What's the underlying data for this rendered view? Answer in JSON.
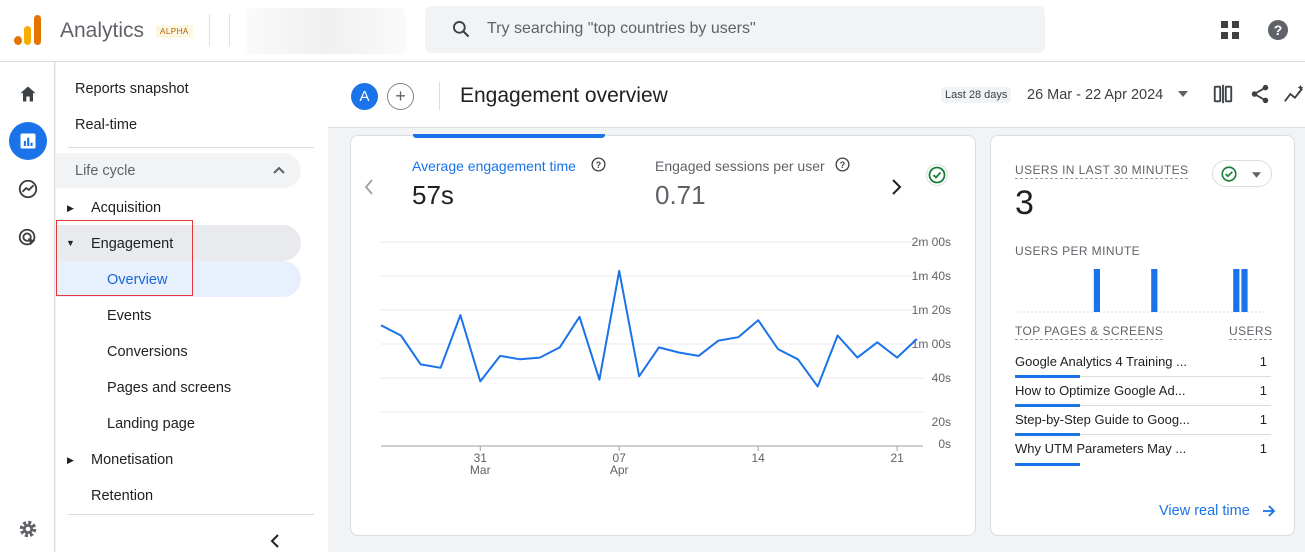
{
  "app": {
    "name": "Analytics",
    "badge": "ALPHA"
  },
  "search": {
    "placeholder": "Try searching \"top countries by users\""
  },
  "sidebar": {
    "reports_snapshot": "Reports snapshot",
    "realtime": "Real-time",
    "section": "Life cycle",
    "acquisition": "Acquisition",
    "engagement": "Engagement",
    "overview": "Overview",
    "events": "Events",
    "conversions": "Conversions",
    "pages_screens": "Pages and screens",
    "landing_page": "Landing page",
    "monetisation": "Monetisation",
    "retention": "Retention"
  },
  "header": {
    "avatar": "A",
    "title": "Engagement overview",
    "date_label": "Last 28 days",
    "date_range": "26 Mar - 22 Apr 2024"
  },
  "metrics": [
    {
      "label": "Average engagement time",
      "value": "57s",
      "color": "#1a73e8"
    },
    {
      "label": "Engaged sessions per user",
      "value": "0.71",
      "color": "#5f6368"
    }
  ],
  "chart_data": {
    "type": "line",
    "y_tick_labels": [
      "2m 00s",
      "1m 40s",
      "1m 20s",
      "1m 00s",
      "40s",
      "20s",
      "0s"
    ],
    "ylim_seconds": [
      0,
      120
    ],
    "x_tick_labels": [
      {
        "day": "31",
        "month": "Mar"
      },
      {
        "day": "07",
        "month": "Apr"
      },
      {
        "day": "14",
        "month": ""
      },
      {
        "day": "21",
        "month": ""
      }
    ],
    "x": [
      "26 Mar",
      "27 Mar",
      "28 Mar",
      "29 Mar",
      "30 Mar",
      "31 Mar",
      "01 Apr",
      "02 Apr",
      "03 Apr",
      "04 Apr",
      "05 Apr",
      "06 Apr",
      "07 Apr",
      "08 Apr",
      "09 Apr",
      "10 Apr",
      "11 Apr",
      "12 Apr",
      "13 Apr",
      "14 Apr",
      "15 Apr",
      "16 Apr",
      "17 Apr",
      "18 Apr",
      "19 Apr",
      "20 Apr",
      "21 Apr",
      "22 Apr"
    ],
    "values": [
      71,
      65,
      48,
      46,
      77,
      38,
      53,
      51,
      52,
      58,
      76,
      39,
      103,
      41,
      58,
      55,
      53,
      62,
      64,
      74,
      57,
      51,
      35,
      65,
      52,
      61,
      52,
      63
    ],
    "color": "#1a73e8"
  },
  "realtime": {
    "users_label": "USERS IN LAST 30 MINUTES",
    "users_value": "3",
    "per_minute_label": "USERS PER MINUTE",
    "per_minute": [
      0,
      0,
      0,
      0,
      0,
      0,
      0,
      0,
      0,
      1,
      0,
      0,
      0,
      0,
      0,
      0,
      1,
      0,
      0,
      0,
      0,
      0,
      0,
      0,
      0,
      0,
      1,
      1,
      0,
      0
    ],
    "table_header_pages": "TOP PAGES & SCREENS",
    "table_header_users": "USERS",
    "rows": [
      {
        "page": "Google Analytics 4 Training ...",
        "users": "1"
      },
      {
        "page": "How to Optimize Google Ad...",
        "users": "1"
      },
      {
        "page": "Step-by-Step Guide to Goog...",
        "users": "1"
      },
      {
        "page": "Why UTM Parameters May ...",
        "users": "1"
      }
    ],
    "view_link": "View real time"
  }
}
